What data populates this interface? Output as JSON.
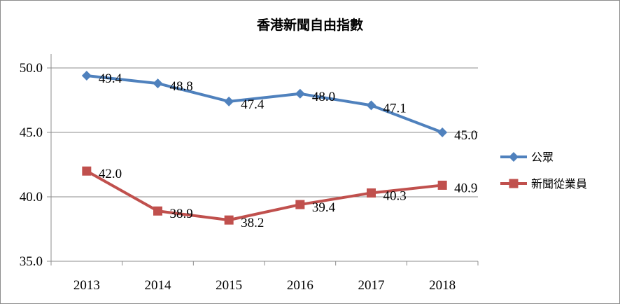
{
  "chart_data": {
    "type": "line",
    "title": "香港新聞自由指數",
    "categories": [
      "2013",
      "2014",
      "2015",
      "2016",
      "2017",
      "2018"
    ],
    "series": [
      {
        "name": "公眾",
        "values": [
          49.4,
          48.8,
          47.4,
          48.0,
          47.1,
          45.0
        ],
        "color": "#4f81bd",
        "marker": "diamond"
      },
      {
        "name": "新聞從業員",
        "values": [
          42.0,
          38.9,
          38.2,
          39.4,
          40.3,
          40.9
        ],
        "color": "#c0504d",
        "marker": "square"
      }
    ],
    "ylim": [
      35.0,
      50.0
    ],
    "yticks": [
      "35.0",
      "40.0",
      "45.0",
      "50.0"
    ],
    "grid": true,
    "legend_position": "right",
    "data_labels": true
  }
}
